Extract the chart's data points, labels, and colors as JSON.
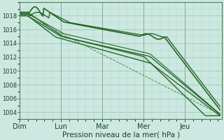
{
  "title": "",
  "xlabel": "Pression niveau de la mer( hPa )",
  "bg_color": "#cce8e0",
  "plot_bg_color": "#cce8e0",
  "line_color_dark": "#1a5c1a",
  "line_color_dashed": "#3a8c3a",
  "ylim": [
    1003.0,
    1020.0
  ],
  "yticks": [
    1004,
    1006,
    1008,
    1010,
    1012,
    1014,
    1016,
    1018
  ],
  "day_labels": [
    "Dim",
    "Lun",
    "Mar",
    "Mer",
    "Jeu"
  ],
  "xlim": [
    0,
    4.9
  ],
  "num_points": 200
}
